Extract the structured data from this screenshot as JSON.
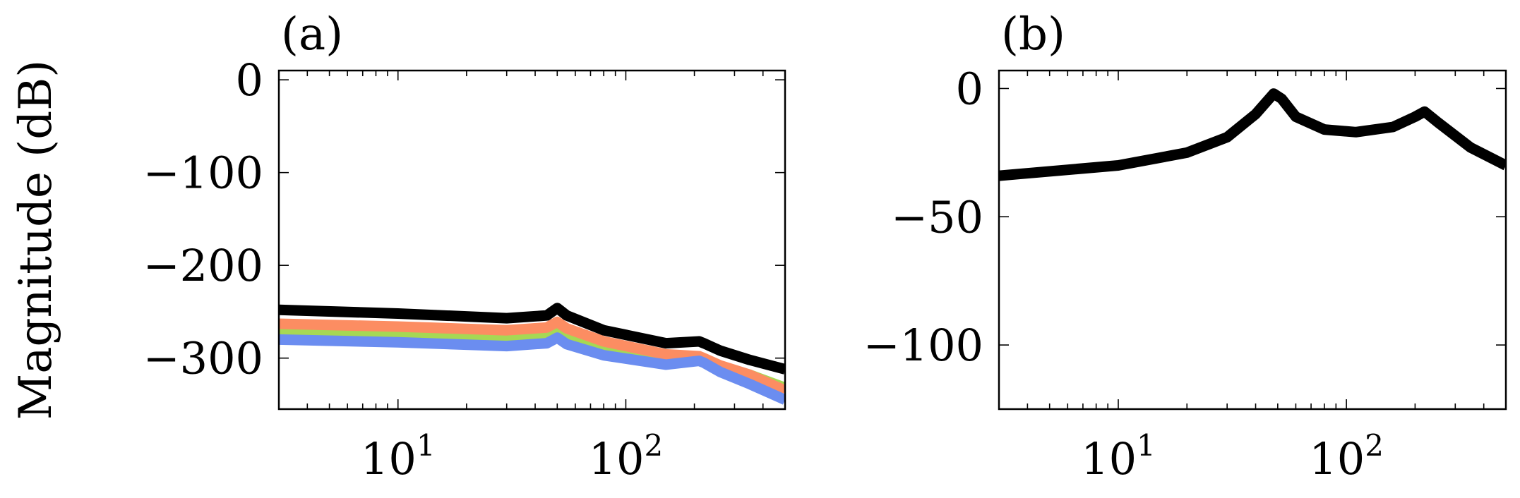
{
  "figure": {
    "ylabel": "Magnitude (dB)"
  },
  "chart_data": [
    {
      "type": "line",
      "panel_label": "(a)",
      "xscale": "log",
      "xlim": [
        3,
        500
      ],
      "ylim": [
        -355,
        10
      ],
      "xticks": [
        {
          "value": 10,
          "mantissa": "10",
          "exponent": "1"
        },
        {
          "value": 100,
          "mantissa": "10",
          "exponent": "2"
        }
      ],
      "yticks": [
        {
          "value": 0,
          "label": "0"
        },
        {
          "value": -100,
          "label": "−100"
        },
        {
          "value": -200,
          "label": "−200"
        },
        {
          "value": -300,
          "label": "−300"
        }
      ],
      "series": [
        {
          "color": "#a6d854",
          "x": [
            3,
            10,
            30,
            45,
            50,
            55,
            80,
            150,
            210,
            220,
            260,
            350,
            500
          ],
          "y": [
            -273,
            -276,
            -280,
            -278,
            -271,
            -278,
            -290,
            -300,
            -300,
            -302,
            -310,
            -318,
            -332
          ]
        },
        {
          "color": "#fc8d62",
          "x": [
            3,
            10,
            30,
            45,
            50,
            55,
            80,
            150,
            210,
            220,
            260,
            350,
            500
          ],
          "y": [
            -263,
            -266,
            -270,
            -267,
            -261,
            -268,
            -282,
            -296,
            -298,
            -300,
            -308,
            -318,
            -335
          ]
        },
        {
          "color": "#6b8df0",
          "x": [
            3,
            10,
            30,
            45,
            50,
            55,
            80,
            150,
            210,
            220,
            260,
            350,
            500
          ],
          "y": [
            -280,
            -283,
            -287,
            -284,
            -278,
            -285,
            -297,
            -307,
            -303,
            -305,
            -315,
            -328,
            -345
          ]
        },
        {
          "color": "#000000",
          "x": [
            3,
            10,
            30,
            45,
            50,
            55,
            80,
            150,
            210,
            220,
            260,
            350,
            500
          ],
          "y": [
            -248,
            -252,
            -257,
            -254,
            -246,
            -254,
            -270,
            -284,
            -282,
            -284,
            -292,
            -302,
            -312
          ]
        }
      ]
    },
    {
      "type": "line",
      "panel_label": "(b)",
      "xscale": "log",
      "xlim": [
        3,
        500
      ],
      "ylim": [
        -125,
        7
      ],
      "xticks": [
        {
          "value": 10,
          "mantissa": "10",
          "exponent": "1"
        },
        {
          "value": 100,
          "mantissa": "10",
          "exponent": "2"
        }
      ],
      "yticks": [
        {
          "value": 0,
          "label": "0"
        },
        {
          "value": -50,
          "label": "−50"
        },
        {
          "value": -100,
          "label": "−100"
        }
      ],
      "series": [
        {
          "color": "#000000",
          "x": [
            3,
            10,
            20,
            30,
            40,
            48,
            52,
            60,
            80,
            110,
            160,
            200,
            220,
            250,
            350,
            500
          ],
          "y": [
            -34,
            -30,
            -25,
            -19,
            -10,
            -2,
            -4,
            -11,
            -16,
            -17,
            -15,
            -11,
            -9,
            -13,
            -23,
            -30
          ]
        }
      ]
    }
  ]
}
